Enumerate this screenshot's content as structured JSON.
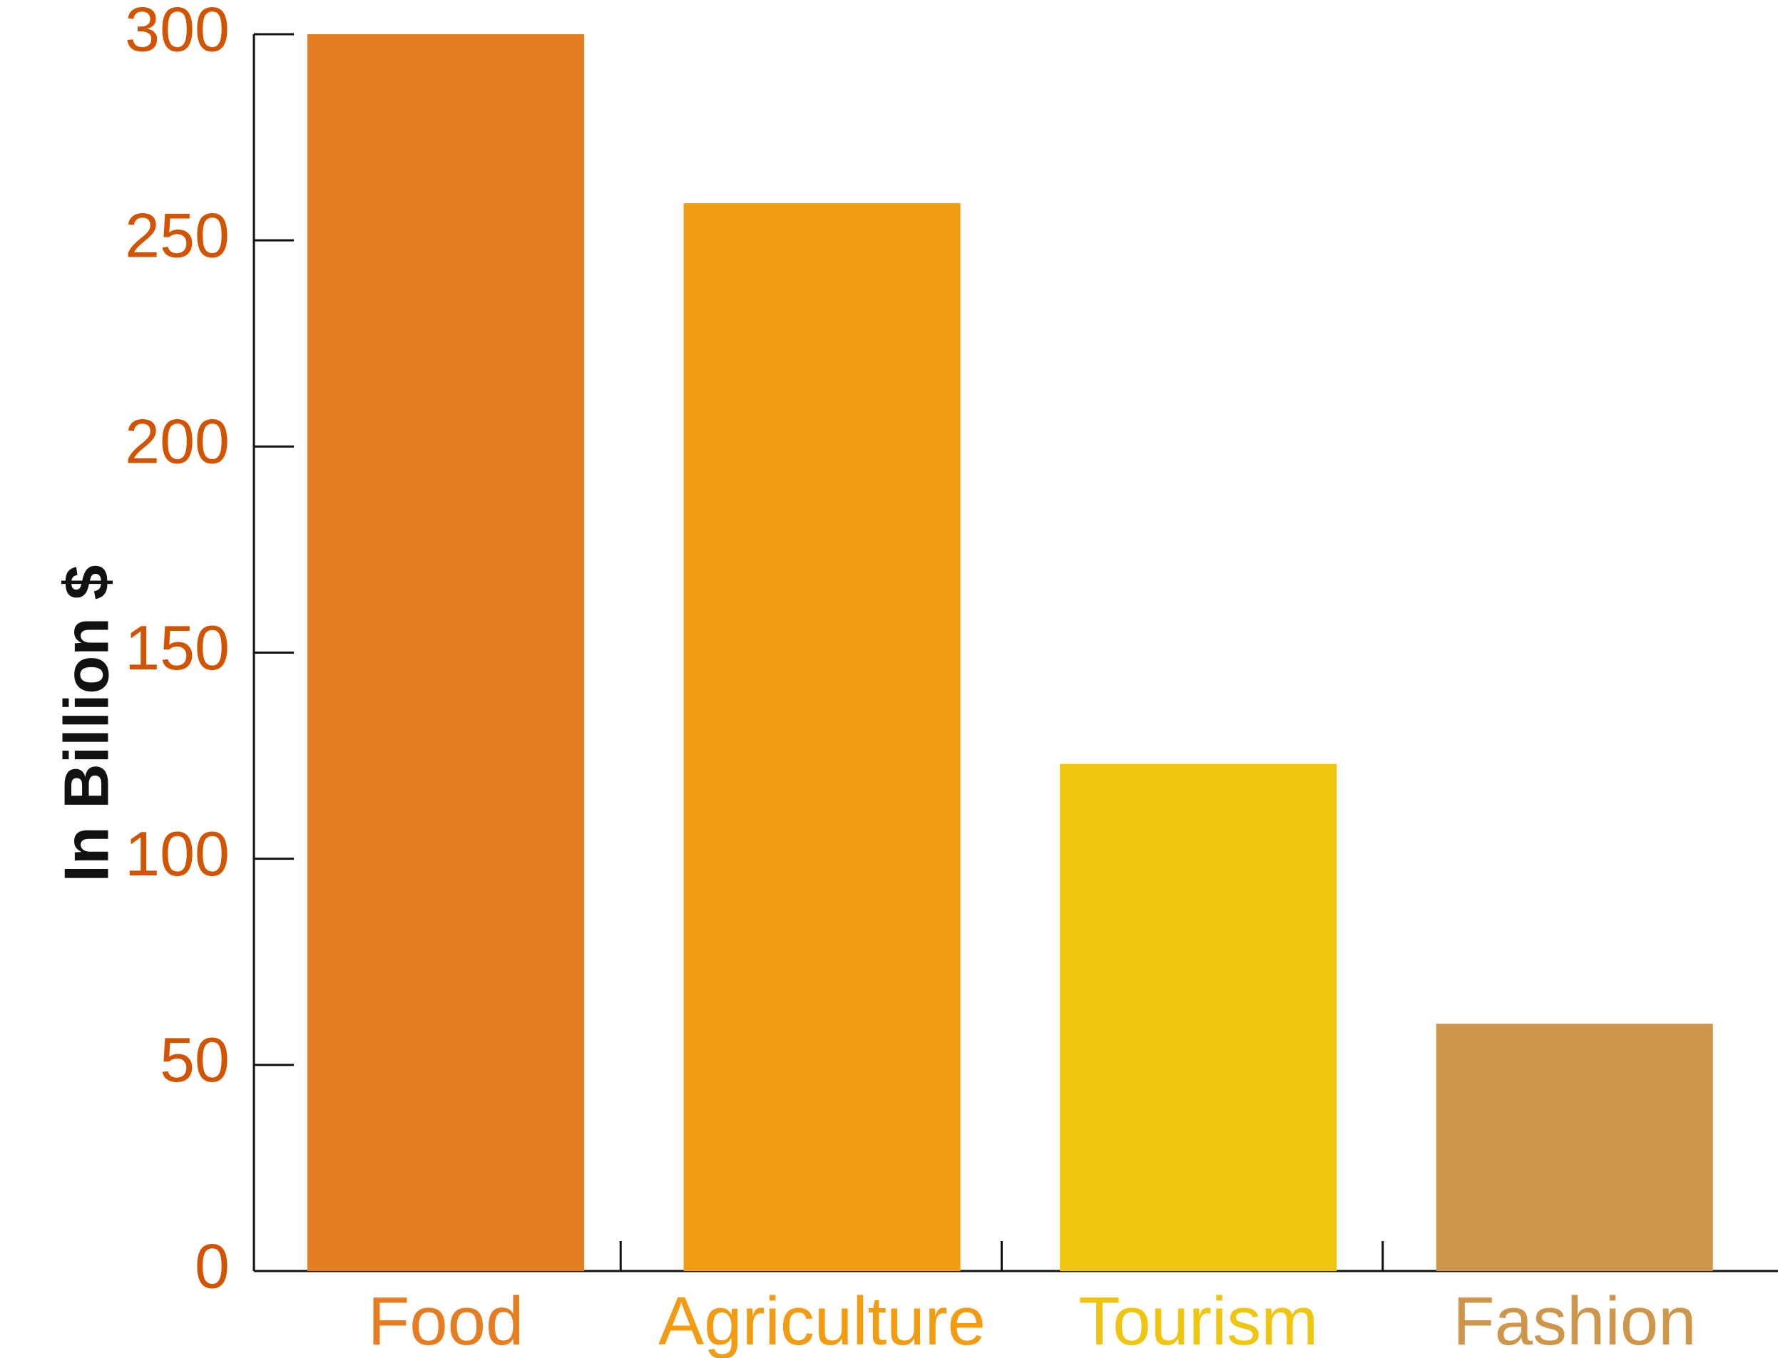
{
  "chart_data": {
    "type": "bar",
    "title": "",
    "xlabel": "",
    "ylabel": "In Billion $",
    "categories": [
      "Food",
      "Agriculture",
      "Tourism",
      "Fashion"
    ],
    "values": [
      300,
      259,
      123,
      60
    ],
    "bar_colors": [
      "#E57E22",
      "#F19C13",
      "#EFC510",
      "#CE964A"
    ],
    "ylim": [
      0,
      300
    ],
    "yticks": [
      0,
      50,
      100,
      150,
      200,
      250,
      300
    ],
    "ytick_labels": [
      "0",
      "50",
      "100",
      "150",
      "200",
      "250",
      "300"
    ],
    "tick_label_color": "#D35400",
    "grid": false,
    "legend": "none"
  }
}
